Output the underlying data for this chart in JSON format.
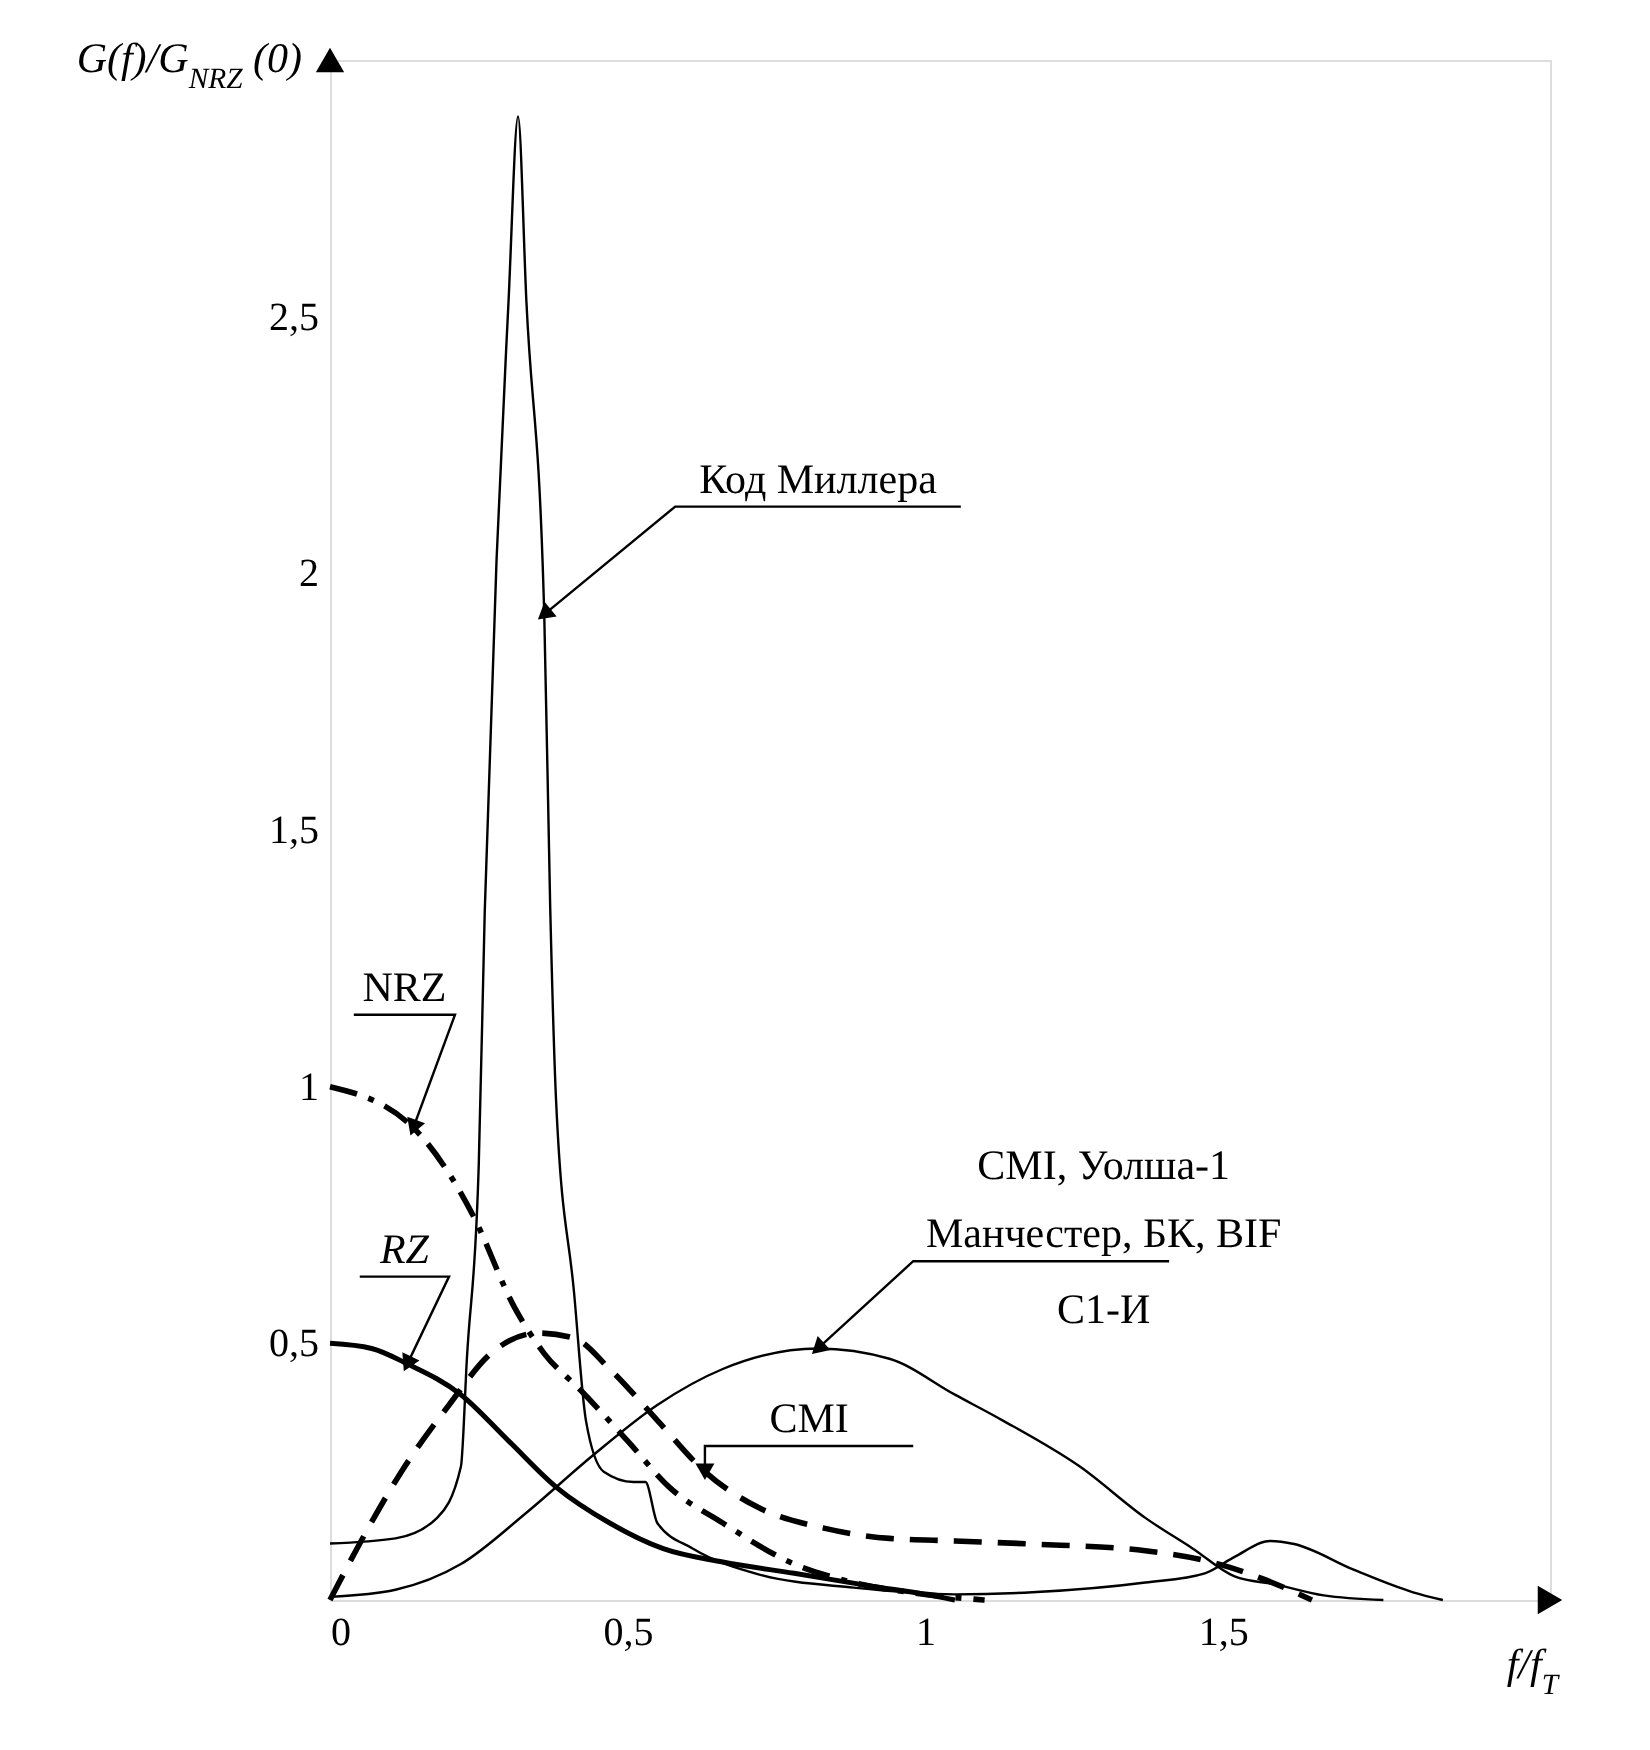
{
  "chart_data": {
    "type": "line",
    "xlabel": "f/f$_{T}$",
    "ylabel": "G(f)/G$_{NRZ}$ (0)",
    "xlim": [
      0,
      2.05
    ],
    "ylim": [
      0,
      3.0
    ],
    "xticks": [
      0,
      {
        "value": 0.5,
        "label": "0,5"
      },
      1,
      {
        "value": 1.5,
        "label": "1,5"
      }
    ],
    "yticks": [
      {
        "value": 0.5,
        "label": "0,5"
      },
      1,
      {
        "value": 1.5,
        "label": "1,5"
      },
      2,
      {
        "value": 2.5,
        "label": "2,5"
      }
    ],
    "grid": false,
    "marker": "none",
    "series": [
      {
        "name": "Код Миллера",
        "color": "#000000",
        "line_style": "solid",
        "x": [
          0,
          0.11,
          0.18,
          0.22,
          0.23,
          0.25,
          0.26,
          0.28,
          0.3,
          0.316,
          0.33,
          0.36,
          0.37,
          0.38,
          0.41,
          0.43,
          0.46,
          0.51,
          0.53,
          0.55,
          0.61,
          0.72,
          0.88,
          1.05,
          1.18,
          1.37,
          1.47,
          1.52,
          1.58,
          1.62,
          1.72,
          1.82,
          1.87
        ],
        "values": [
          0.11,
          0.12,
          0.16,
          0.26,
          0.47,
          0.85,
          1.34,
          2.03,
          2.53,
          2.89,
          2.53,
          1.92,
          1.35,
          0.97,
          0.6,
          0.35,
          0.25,
          0.23,
          0.23,
          0.15,
          0.1,
          0.05,
          0.024,
          0.011,
          0.015,
          0.034,
          0.052,
          0.084,
          0.115,
          0.109,
          0.059,
          0.015,
          0
        ]
      },
      {
        "name": "CMI, Уолша-1\nМанчестер, БК, BIF\nС1-И",
        "color": "#000000",
        "line_style": "solid",
        "x": [
          0,
          0.11,
          0.22,
          0.33,
          0.44,
          0.55,
          0.66,
          0.82,
          0.94,
          1.05,
          1.13,
          1.26,
          1.37,
          1.45,
          1.52,
          1.59,
          1.67,
          1.77
        ],
        "values": [
          0.006,
          0.02,
          0.07,
          0.17,
          0.28,
          0.38,
          0.45,
          0.49,
          0.47,
          0.4,
          0.35,
          0.26,
          0.16,
          0.1,
          0.046,
          0.03,
          0.009,
          0
        ]
      },
      {
        "name": "NRZ",
        "color": "#000000",
        "line_style": "dashdot",
        "x": [
          0,
          0.14,
          0.24,
          0.31,
          0.36,
          0.42,
          0.5,
          0.57,
          0.66,
          0.78,
          0.88,
          1.0,
          1.1
        ],
        "values": [
          1.0,
          0.92,
          0.75,
          0.57,
          0.48,
          0.41,
          0.31,
          0.22,
          0.15,
          0.07,
          0.034,
          0.011,
          0
        ]
      },
      {
        "name": "RZ",
        "color": "#000000",
        "line_style": "solid",
        "x": [
          0,
          0.07,
          0.13,
          0.22,
          0.3,
          0.38,
          0.47,
          0.56,
          0.66,
          0.78,
          0.91,
          1.0,
          1.05
        ],
        "values": [
          0.5,
          0.49,
          0.46,
          0.4,
          0.31,
          0.22,
          0.15,
          0.1,
          0.074,
          0.052,
          0.027,
          0.011,
          0
        ]
      },
      {
        "name": "CMI",
        "color": "#000000",
        "line_style": "dashed",
        "x": [
          0,
          0.05,
          0.12,
          0.2,
          0.27,
          0.35,
          0.41,
          0.47,
          0.55,
          0.63,
          0.72,
          0.83,
          0.94,
          1.05,
          1.18,
          1.37,
          1.47,
          1.57,
          1.65
        ],
        "values": [
          0,
          0.11,
          0.25,
          0.38,
          0.48,
          0.52,
          0.51,
          0.45,
          0.35,
          0.25,
          0.18,
          0.14,
          0.12,
          0.115,
          0.109,
          0.096,
          0.077,
          0.04,
          0
        ]
      }
    ]
  }
}
